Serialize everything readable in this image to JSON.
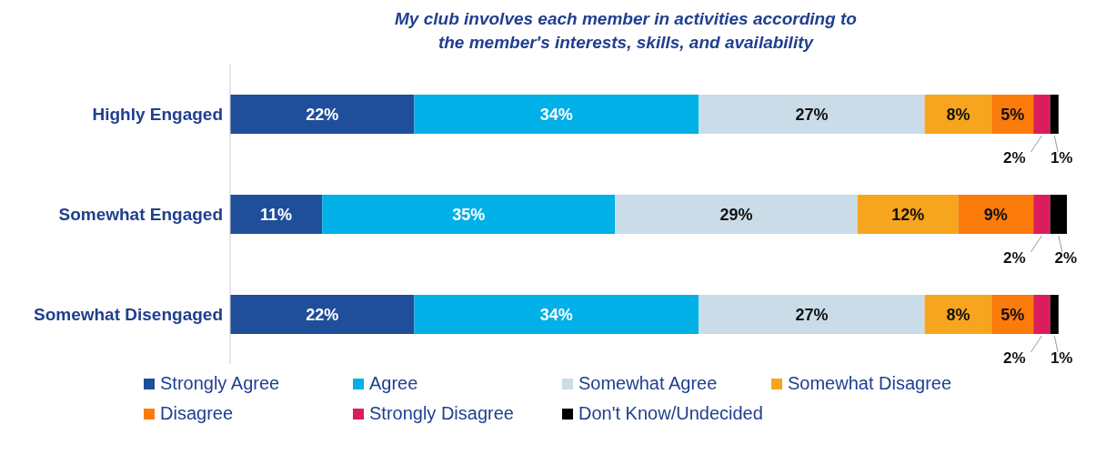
{
  "chart_data": {
    "type": "bar",
    "orientation": "horizontal",
    "stacked": true,
    "title": "My club involves each member in activities according to the member's interests, skills, and availability",
    "categories": [
      "Highly Engaged",
      "Somewhat Engaged",
      "Somewhat Disengaged"
    ],
    "series": [
      {
        "name": "Strongly Agree",
        "color": "#1f4e9a",
        "values": [
          22,
          11,
          22
        ],
        "value_labels": [
          "22%",
          "11%",
          "22%"
        ]
      },
      {
        "name": "Agree",
        "color": "#00b0e6",
        "values": [
          34,
          35,
          34
        ],
        "value_labels": [
          "34%",
          "35%",
          "34%"
        ]
      },
      {
        "name": "Somewhat Agree",
        "color": "#c9dce8",
        "values": [
          27,
          29,
          27
        ],
        "value_labels": [
          "27%",
          "29%",
          "27%"
        ]
      },
      {
        "name": "Somewhat Disagree",
        "color": "#f7a51e",
        "values": [
          8,
          12,
          8
        ],
        "value_labels": [
          "8%",
          "12%",
          "8%"
        ]
      },
      {
        "name": "Disagree",
        "color": "#fb7b0b",
        "values": [
          5,
          9,
          5
        ],
        "value_labels": [
          "5%",
          "9%",
          "5%"
        ]
      },
      {
        "name": "Strongly Disagree",
        "color": "#dc1d5c",
        "values": [
          2,
          2,
          2
        ],
        "value_labels": [
          "2%",
          "2%",
          "2%"
        ]
      },
      {
        "name": "Don't Know/Undecided",
        "color": "#000000",
        "values": [
          1,
          2,
          1
        ],
        "value_labels": [
          "1%",
          "2%",
          "1%"
        ]
      }
    ],
    "legend": "bottom"
  }
}
